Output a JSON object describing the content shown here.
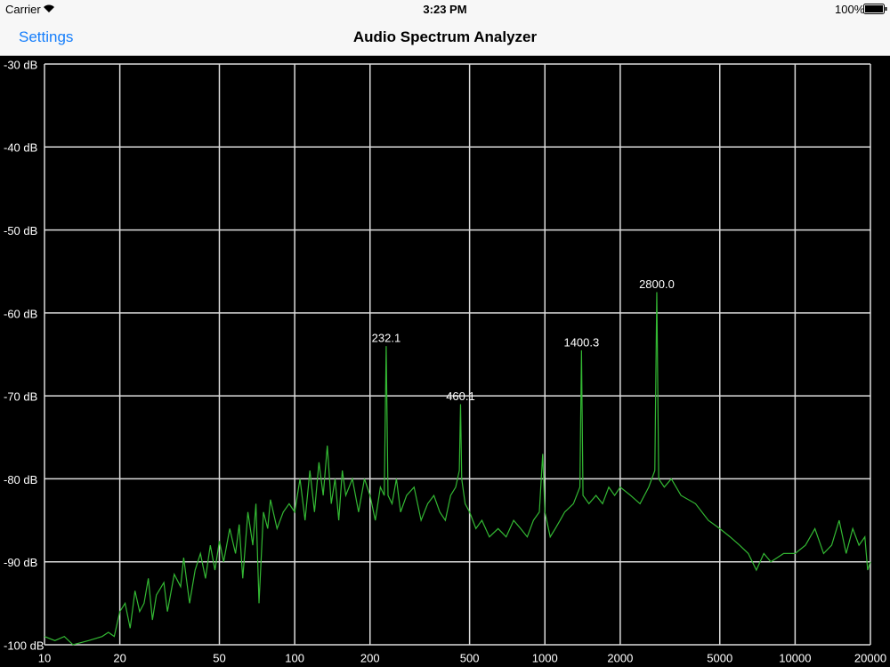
{
  "status_bar": {
    "carrier": "Carrier",
    "time": "3:23 PM",
    "battery": "100%"
  },
  "nav_bar": {
    "back": "Settings",
    "title": "Audio Spectrum Analyzer"
  },
  "chart_data": {
    "type": "line",
    "x_scale": "log",
    "grid": true,
    "color": "#33b833",
    "xlim": [
      10,
      20000
    ],
    "xticks": [
      10,
      20,
      50,
      100,
      200,
      500,
      1000,
      2000,
      5000,
      10000,
      20000
    ],
    "ylim": [
      -100,
      -30
    ],
    "yticks": [
      {
        "value": -30,
        "label": "-30 dB"
      },
      {
        "value": -40,
        "label": "-40 dB"
      },
      {
        "value": -50,
        "label": "-50 dB"
      },
      {
        "value": -60,
        "label": "-60 dB"
      },
      {
        "value": -70,
        "label": "-70 dB"
      },
      {
        "value": -80,
        "label": "-80 dB"
      },
      {
        "value": -90,
        "label": "-90 dB"
      },
      {
        "value": -100,
        "label": "-100 dB"
      }
    ],
    "x": [
      10,
      11,
      12,
      13,
      15,
      17,
      18,
      19,
      20,
      21,
      22,
      23,
      24,
      25,
      26,
      27,
      28,
      30,
      31,
      33,
      35,
      36,
      38,
      40,
      42,
      44,
      46,
      48,
      50,
      52,
      55,
      58,
      60,
      62,
      65,
      68,
      70,
      72,
      75,
      78,
      80,
      85,
      90,
      95,
      100,
      105,
      110,
      115,
      120,
      125,
      130,
      135,
      140,
      145,
      150,
      155,
      160,
      170,
      180,
      190,
      200,
      210,
      220,
      228,
      232.1,
      236,
      245,
      255,
      265,
      280,
      300,
      320,
      340,
      360,
      380,
      400,
      420,
      440,
      455,
      460.1,
      465,
      480,
      500,
      530,
      560,
      600,
      650,
      700,
      750,
      800,
      850,
      900,
      950,
      980,
      1000,
      1050,
      1100,
      1150,
      1200,
      1300,
      1380,
      1400.3,
      1420,
      1500,
      1600,
      1700,
      1800,
      1900,
      2000,
      2200,
      2400,
      2600,
      2750,
      2800.0,
      2850,
      3000,
      3200,
      3500,
      4000,
      4500,
      5000,
      5500,
      6000,
      6500,
      7000,
      7500,
      8000,
      9000,
      10000,
      11000,
      12000,
      13000,
      14000,
      15000,
      16000,
      17000,
      18000,
      19000,
      19500,
      20000
    ],
    "values": [
      -99,
      -99.5,
      -99,
      -100,
      -99.5,
      -99,
      -98.5,
      -99,
      -96,
      -95,
      -98,
      -93.5,
      -96,
      -95,
      -92,
      -97,
      -94,
      -92.5,
      -96,
      -91.5,
      -93,
      -89.5,
      -95,
      -91,
      -89,
      -92,
      -88,
      -91,
      -87.5,
      -90,
      -86,
      -89,
      -85.5,
      -92,
      -84,
      -88,
      -83,
      -95,
      -84,
      -86,
      -82.5,
      -86,
      -84,
      -83,
      -84,
      -80,
      -85,
      -79,
      -84,
      -78,
      -82,
      -76,
      -83,
      -80,
      -85,
      -79,
      -82,
      -80,
      -84,
      -80,
      -82,
      -85,
      -81,
      -82,
      -64,
      -82,
      -83,
      -80,
      -84,
      -82,
      -81,
      -85,
      -83,
      -82,
      -84,
      -85,
      -82,
      -81,
      -79,
      -71,
      -80,
      -83,
      -84,
      -86,
      -85,
      -87,
      -86,
      -87,
      -85,
      -86,
      -87,
      -85,
      -84,
      -77,
      -84,
      -87,
      -86,
      -85,
      -84,
      -83,
      -81,
      -64.5,
      -82,
      -83,
      -82,
      -83,
      -81,
      -82,
      -81,
      -82,
      -83,
      -81,
      -79,
      -57.5,
      -80,
      -81,
      -80,
      -82,
      -83,
      -85,
      -86,
      -87,
      -88,
      -89,
      -91,
      -89,
      -90,
      -89,
      -89,
      -88,
      -86,
      -89,
      -88,
      -85,
      -89,
      -86,
      -88,
      -87,
      -91,
      -90
    ],
    "annotations": [
      {
        "x": 232.1,
        "y": -64,
        "text": "232.1"
      },
      {
        "x": 460.1,
        "y": -71,
        "text": "460.1"
      },
      {
        "x": 1400.3,
        "y": -64.5,
        "text": "1400.3"
      },
      {
        "x": 2800.0,
        "y": -57.5,
        "text": "2800.0"
      }
    ]
  }
}
